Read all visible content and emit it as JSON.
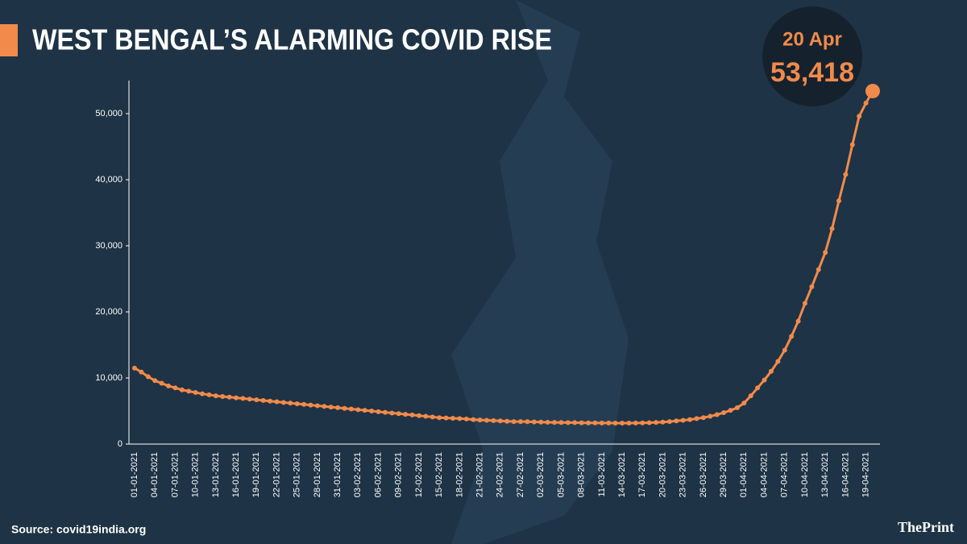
{
  "chart_data": {
    "type": "line",
    "title": "WEST BENGAL’S ALARMING COVID RISE",
    "source": "Source: covid19india.org",
    "brand": "ThePrint",
    "highlight": {
      "date": "20 Apr",
      "value_label": "53,418"
    },
    "color": "#f28a4b",
    "categories": [
      "01-01-2021",
      null,
      null,
      "04-01-2021",
      null,
      null,
      "07-01-2021",
      null,
      null,
      "10-01-2021",
      null,
      null,
      "13-01-2021",
      null,
      null,
      "16-01-2021",
      null,
      null,
      "19-01-2021",
      null,
      null,
      "22-01-2021",
      null,
      null,
      "25-01-2021",
      null,
      null,
      "28-01-2021",
      null,
      null,
      "31-01-2021",
      null,
      null,
      "03-02-2021",
      null,
      null,
      "06-02-2021",
      null,
      null,
      "09-02-2021",
      null,
      null,
      "12-02-2021",
      null,
      null,
      "15-02-2021",
      null,
      null,
      "18-02-2021",
      null,
      null,
      "21-02-2021",
      null,
      null,
      "24-02-2021",
      null,
      null,
      "27-02-2021",
      null,
      null,
      "02-03-2021",
      null,
      null,
      "05-03-2021",
      null,
      null,
      "08-03-2021",
      null,
      null,
      "11-03-2021",
      null,
      null,
      "14-03-2021",
      null,
      null,
      "17-03-2021",
      null,
      null,
      "20-03-2021",
      null,
      null,
      "23-03-2021",
      null,
      null,
      "26-03-2021",
      null,
      null,
      "29-03-2021",
      null,
      null,
      "01-04-2021",
      null,
      null,
      "04-04-2021",
      null,
      null,
      "07-04-2021",
      null,
      null,
      "10-04-2021",
      null,
      null,
      "13-04-2021",
      null,
      null,
      "16-04-2021",
      null,
      null,
      "19-04-2021",
      null
    ],
    "values": [
      11500,
      10900,
      10200,
      9600,
      9200,
      8800,
      8500,
      8200,
      8000,
      7800,
      7600,
      7450,
      7300,
      7200,
      7100,
      7000,
      6900,
      6800,
      6700,
      6600,
      6500,
      6400,
      6300,
      6200,
      6100,
      6000,
      5900,
      5800,
      5700,
      5600,
      5500,
      5400,
      5300,
      5200,
      5100,
      5000,
      4900,
      4800,
      4700,
      4600,
      4500,
      4400,
      4300,
      4200,
      4100,
      4000,
      3950,
      3900,
      3850,
      3800,
      3700,
      3650,
      3600,
      3550,
      3500,
      3450,
      3400,
      3400,
      3380,
      3350,
      3330,
      3300,
      3280,
      3260,
      3250,
      3240,
      3220,
      3200,
      3200,
      3180,
      3180,
      3170,
      3170,
      3170,
      3180,
      3200,
      3230,
      3270,
      3320,
      3400,
      3500,
      3600,
      3700,
      3850,
      4000,
      4200,
      4450,
      4750,
      5100,
      5500,
      6200,
      7300,
      8500,
      9700,
      11000,
      12500,
      14200,
      16300,
      18600,
      21300,
      23800,
      26400,
      29000,
      32600,
      36800,
      40800,
      45300,
      49600,
      51600,
      53418
    ],
    "ylim": [
      0,
      55000
    ],
    "yticks": [
      0,
      {
        "value": 10000,
        "label": "10,000"
      },
      {
        "value": 20000,
        "label": "20,000"
      },
      {
        "value": 30000,
        "label": "30,000"
      },
      {
        "value": 40000,
        "label": "40,000"
      },
      {
        "value": 50000,
        "label": "50,000"
      }
    ]
  }
}
